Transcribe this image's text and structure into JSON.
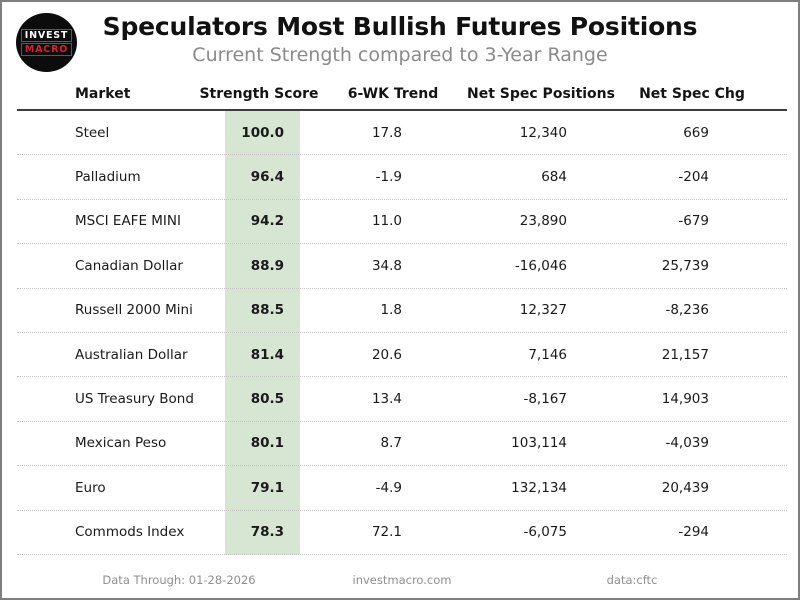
{
  "colors": {
    "score_band_green": "#d6e6d2",
    "logo_red": "#d8202f",
    "logo_black": "#0c0c0c",
    "subtitle_gray": "#8a8a8a",
    "footer_gray": "#8f8f8f",
    "border_gray": "#7f7f7f"
  },
  "logo": {
    "top": "INVEST",
    "bottom": "MACRO"
  },
  "header": {
    "title": "Speculators Most Bullish Futures Positions",
    "subtitle": "Current Strength compared to 3-Year Range"
  },
  "columns": {
    "market": "Market",
    "score": "Strength Score",
    "trend": "6-WK Trend",
    "positions": "Net Spec Positions",
    "chg": "Net Spec Chg"
  },
  "rows": [
    {
      "market": "Steel",
      "score": "100.0",
      "trend": "17.8",
      "positions": "12,340",
      "chg": "669"
    },
    {
      "market": "Palladium",
      "score": "96.4",
      "trend": "-1.9",
      "positions": "684",
      "chg": "-204"
    },
    {
      "market": "MSCI EAFE MINI",
      "score": "94.2",
      "trend": "11.0",
      "positions": "23,890",
      "chg": "-679"
    },
    {
      "market": "Canadian Dollar",
      "score": "88.9",
      "trend": "34.8",
      "positions": "-16,046",
      "chg": "25,739"
    },
    {
      "market": "Russell 2000 Mini",
      "score": "88.5",
      "trend": "1.8",
      "positions": "12,327",
      "chg": "-8,236"
    },
    {
      "market": "Australian Dollar",
      "score": "81.4",
      "trend": "20.6",
      "positions": "7,146",
      "chg": "21,157"
    },
    {
      "market": "US Treasury Bond",
      "score": "80.5",
      "trend": "13.4",
      "positions": "-8,167",
      "chg": "14,903"
    },
    {
      "market": "Mexican Peso",
      "score": "80.1",
      "trend": "8.7",
      "positions": "103,114",
      "chg": "-4,039"
    },
    {
      "market": "Euro",
      "score": "79.1",
      "trend": "-4.9",
      "positions": "132,134",
      "chg": "20,439"
    },
    {
      "market": "Commods Index",
      "score": "78.3",
      "trend": "72.1",
      "positions": "-6,075",
      "chg": "-294"
    }
  ],
  "footer": {
    "data_through": "Data Through: 01-28-2026",
    "website": "investmacro.com",
    "source": "data:cftc"
  },
  "chart_data": {
    "type": "table",
    "title": "Speculators Most Bullish Futures Positions",
    "subtitle": "Current Strength compared to 3-Year Range",
    "columns": [
      "Market",
      "Strength Score",
      "6-WK Trend",
      "Net Spec Positions",
      "Net Spec Chg"
    ],
    "rows": [
      [
        "Steel",
        100.0,
        17.8,
        12340,
        669
      ],
      [
        "Palladium",
        96.4,
        -1.9,
        684,
        -204
      ],
      [
        "MSCI EAFE MINI",
        94.2,
        11.0,
        23890,
        -679
      ],
      [
        "Canadian Dollar",
        88.9,
        34.8,
        -16046,
        25739
      ],
      [
        "Russell 2000 Mini",
        88.5,
        1.8,
        12327,
        -8236
      ],
      [
        "Australian Dollar",
        81.4,
        20.6,
        7146,
        21157
      ],
      [
        "US Treasury Bond",
        80.5,
        13.4,
        -8167,
        14903
      ],
      [
        "Mexican Peso",
        80.1,
        8.7,
        103114,
        -4039
      ],
      [
        "Euro",
        79.1,
        -4.9,
        132134,
        20439
      ],
      [
        "Commods Index",
        78.3,
        72.1,
        -6075,
        -294
      ]
    ],
    "highlight_column": "Strength Score",
    "highlight_color": "#d6e6d2",
    "sort": "Strength Score descending",
    "data_through": "01-28-2026",
    "source": "cftc"
  }
}
